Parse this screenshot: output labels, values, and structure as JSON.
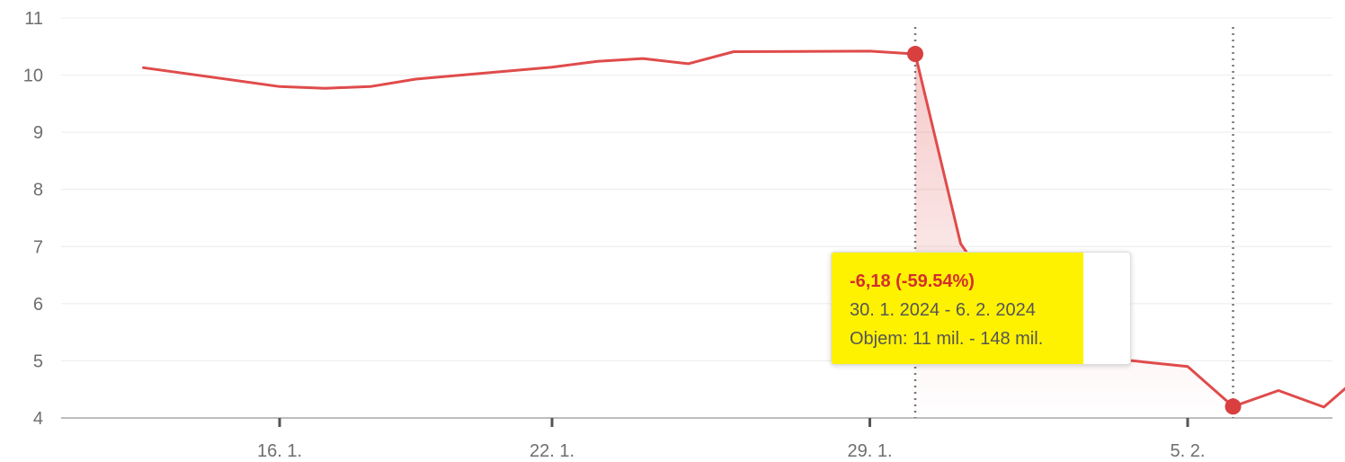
{
  "chart_data": {
    "type": "line",
    "x_tick_labels": [
      "16. 1.",
      "22. 1.",
      "29. 1.",
      "5. 2."
    ],
    "y_tick_labels": [
      "4",
      "5",
      "6",
      "7",
      "8",
      "9",
      "10",
      "11"
    ],
    "ylim": [
      4,
      11
    ],
    "grid": true,
    "line_color": "#e04b4b",
    "series": [
      {
        "x": [
          "2024-01-13",
          "2024-01-16",
          "2024-01-17",
          "2024-01-18",
          "2024-01-19",
          "2024-01-22",
          "2024-01-23",
          "2024-01-24",
          "2024-01-25",
          "2024-01-26",
          "2024-01-29",
          "2024-01-30",
          "2024-01-31",
          "2024-02-01",
          "2024-02-02",
          "2024-02-05",
          "2024-02-06",
          "2024-02-07",
          "2024-02-08",
          "2024-02-09"
        ],
        "values": [
          10.13,
          9.8,
          9.77,
          9.8,
          9.93,
          10.14,
          10.24,
          10.29,
          10.2,
          10.41,
          10.42,
          10.37,
          7.05,
          5.9,
          5.15,
          4.9,
          4.2,
          4.48,
          4.19,
          4.88
        ]
      }
    ],
    "highlighted_points": [
      "2024-01-30",
      "2024-02-06"
    ],
    "tooltip": {
      "change": "-6,18 (-59.54%)",
      "range": "30. 1. 2024 - 6. 2. 2024",
      "volume": "Objem: 11 mil. - 148 mil."
    },
    "highlight_color": "#fff200"
  }
}
